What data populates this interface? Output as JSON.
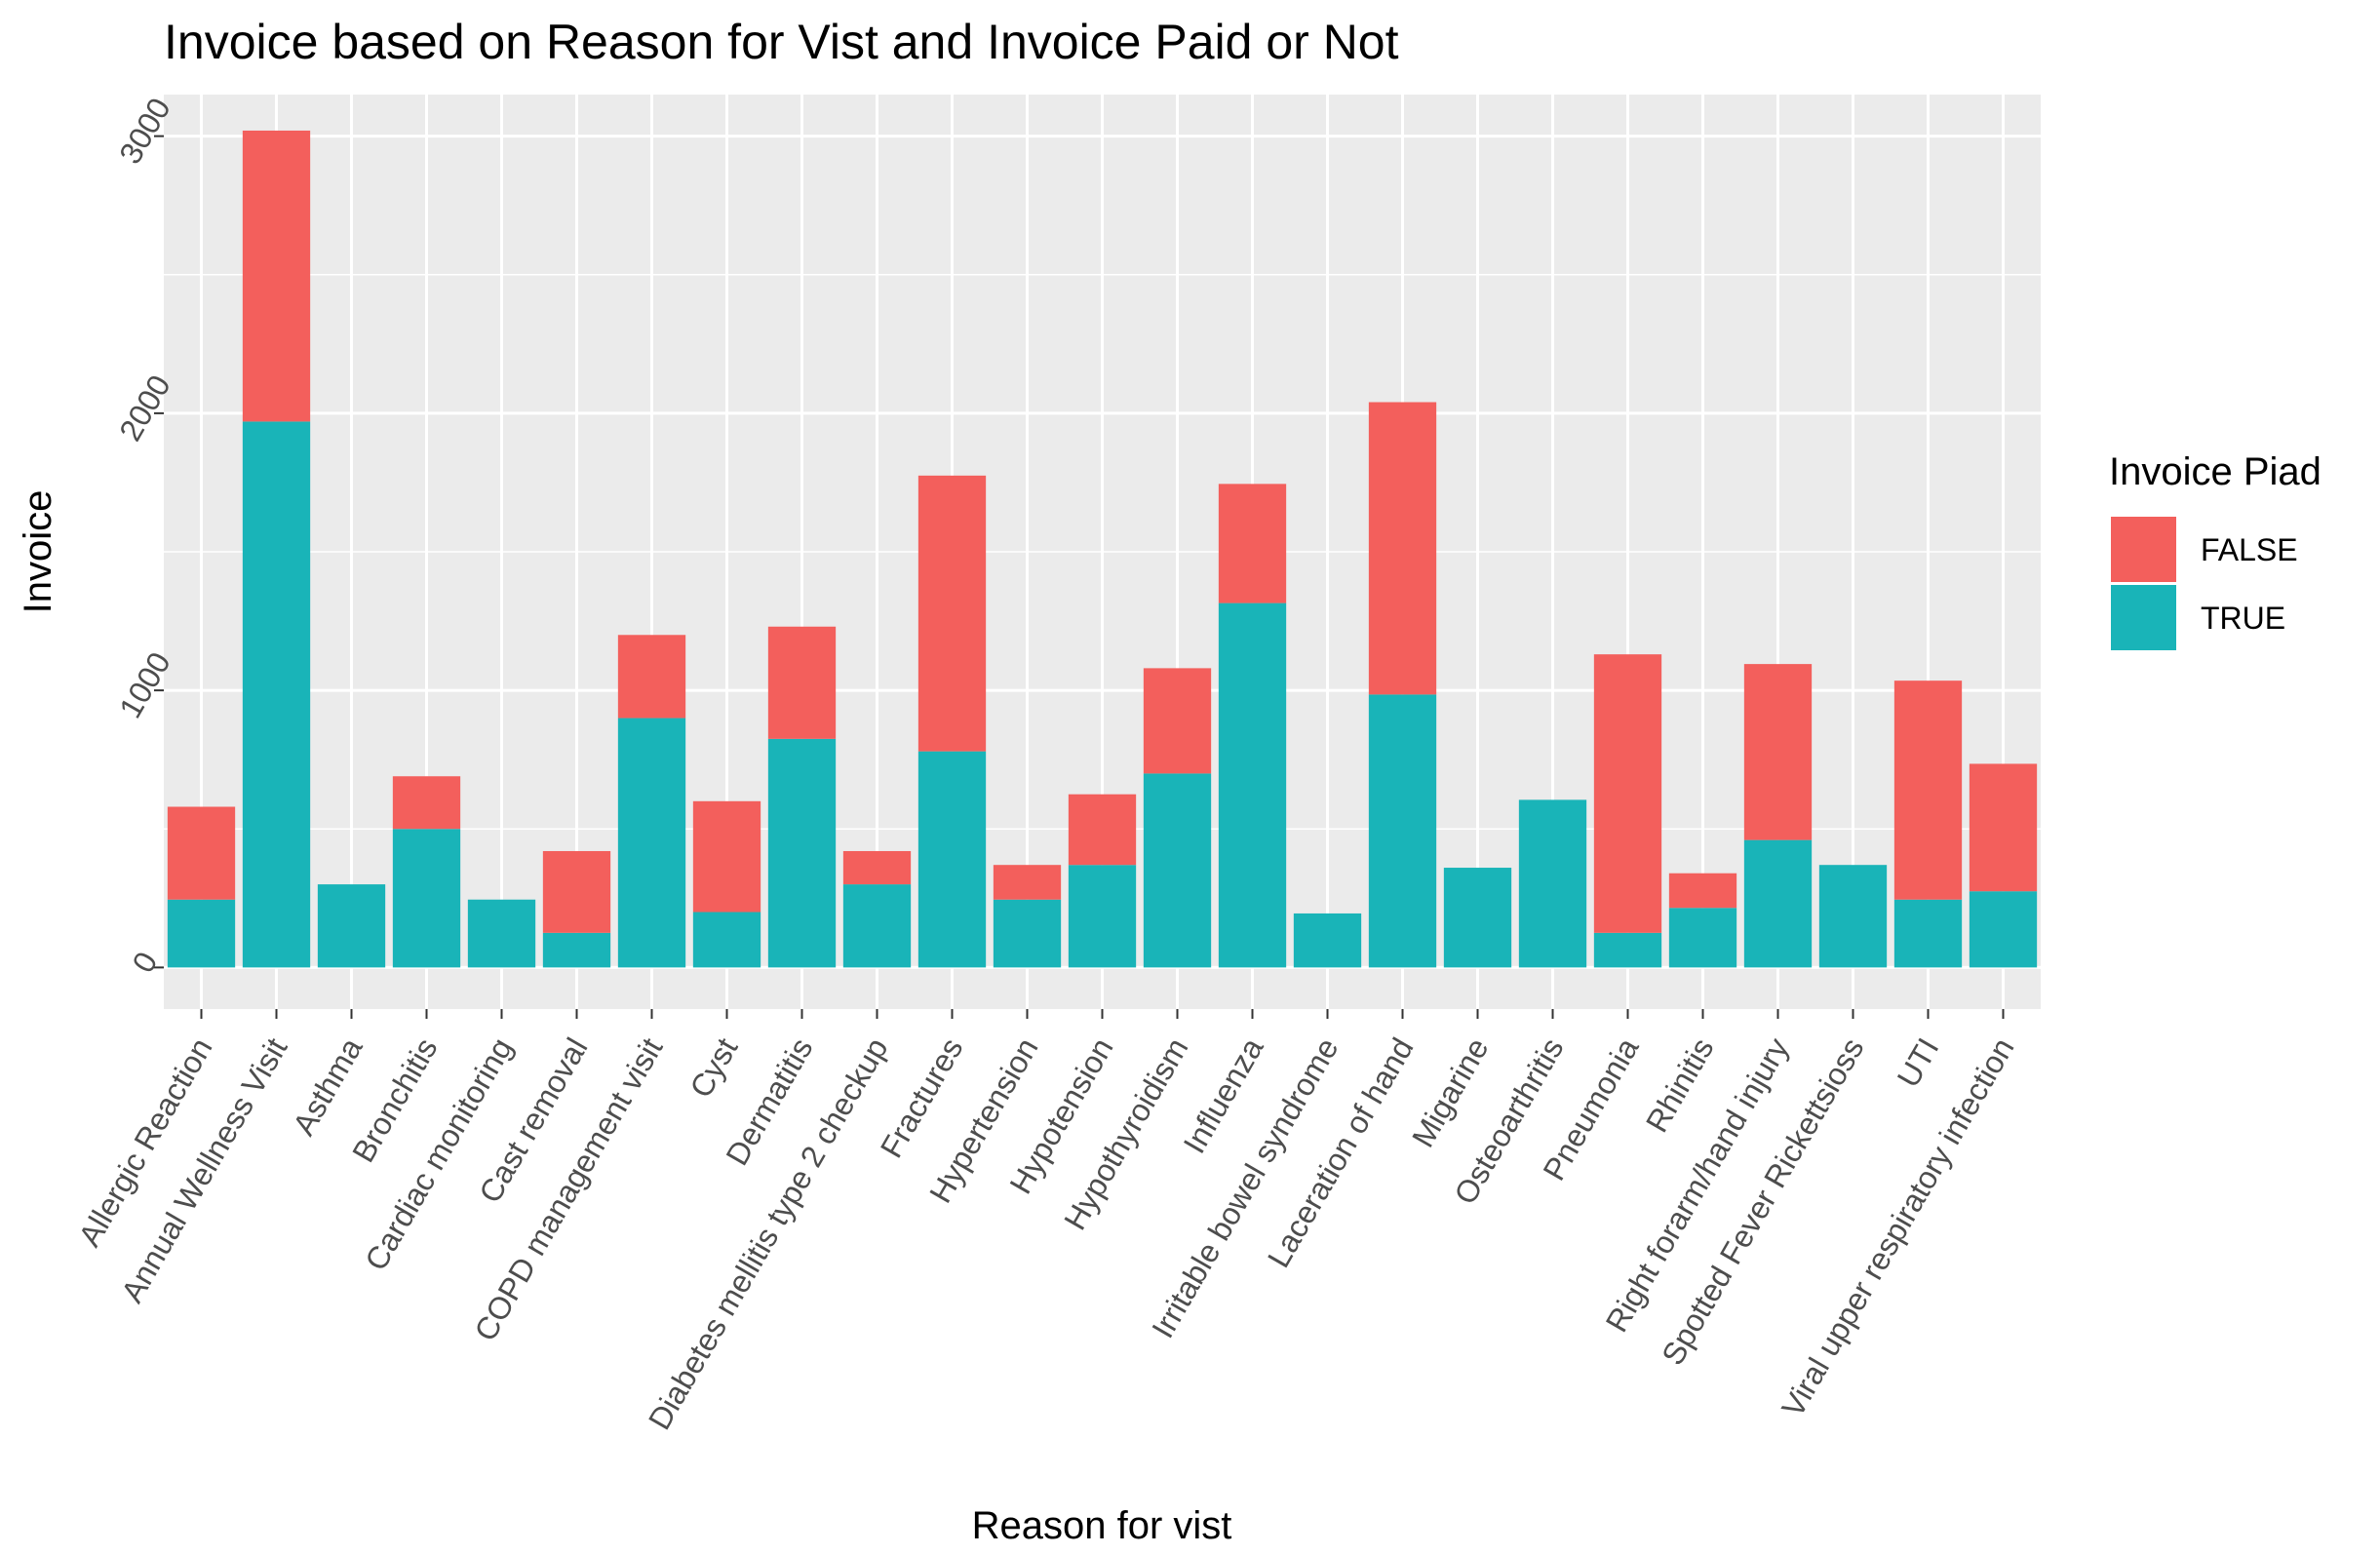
{
  "chart_data": {
    "type": "bar",
    "stacked": true,
    "title": "Invoice based on Reason for Vist and Invoice Paid or Not",
    "xlabel": "Reason for vist",
    "ylabel": "Invoice",
    "ylim": [
      -150,
      3150
    ],
    "yticks": [
      0,
      1000,
      2000,
      3000
    ],
    "grid": true,
    "legend": {
      "title": "Invoice Piad",
      "position": "right"
    },
    "categories": [
      "Allergic Reaction",
      "Annual Wellness Visit",
      "Asthma",
      "Bronchitis",
      "Cardiac monitoring",
      "Cast removal",
      "COPD management visit",
      "Cyst",
      "Dermatitis",
      "Diabetes mellitis type 2 checkup",
      "Fractures",
      "Hypertension",
      "Hypotension",
      "Hypothyroidism",
      "Influenza",
      "Irritable bowel syndrome",
      "Laceration of hand",
      "Migarine",
      "Osteoarthritis",
      "Pneumonia",
      "Rhinitis",
      "Right forarm/hand injury",
      "Spotted Fever Rickettsioss",
      "UTI",
      "Viral upper respiratory infection"
    ],
    "series": [
      {
        "name": "TRUE",
        "color": "#19b4b8",
        "values": [
          245,
          1970,
          300,
          500,
          245,
          125,
          900,
          200,
          825,
          300,
          780,
          245,
          370,
          700,
          1315,
          195,
          985,
          360,
          605,
          125,
          215,
          460,
          370,
          245,
          275
        ]
      },
      {
        "name": "FALSE",
        "color": "#f35f5c",
        "values": [
          335,
          1050,
          0,
          190,
          0,
          295,
          300,
          400,
          405,
          120,
          995,
          125,
          255,
          380,
          430,
          0,
          1055,
          0,
          0,
          1005,
          125,
          635,
          0,
          790,
          460
        ]
      }
    ]
  }
}
